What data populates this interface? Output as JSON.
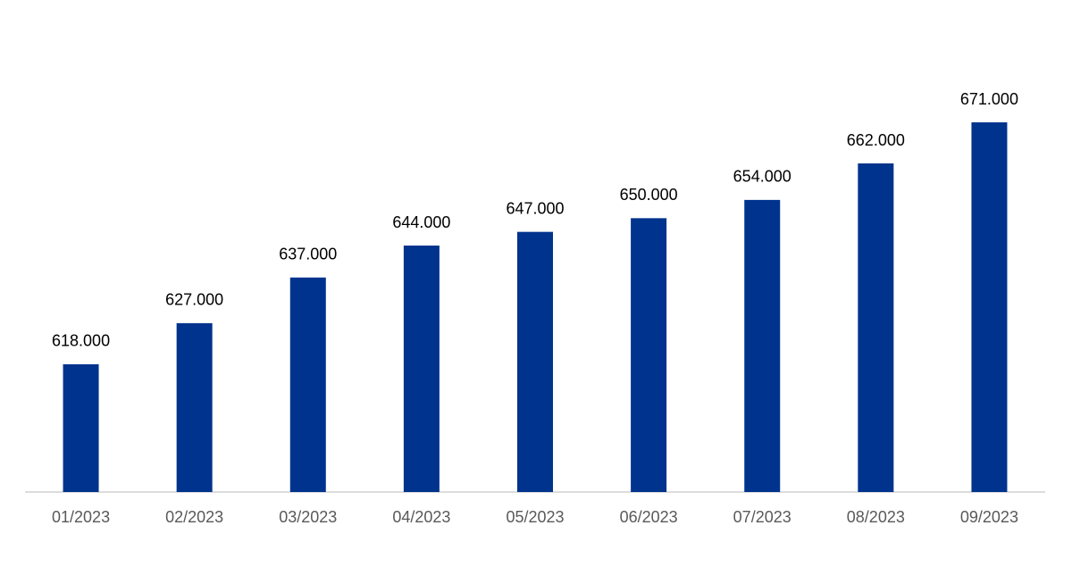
{
  "chart_data": {
    "type": "bar",
    "categories": [
      "01/2023",
      "02/2023",
      "03/2023",
      "04/2023",
      "05/2023",
      "06/2023",
      "07/2023",
      "08/2023",
      "09/2023"
    ],
    "values": [
      618000,
      627000,
      637000,
      644000,
      647000,
      650000,
      654000,
      662000,
      671000
    ],
    "value_labels": [
      "618.000",
      "627.000",
      "637.000",
      "644.000",
      "647.000",
      "650.000",
      "654.000",
      "662.000",
      "671.000"
    ],
    "color": "#00338d",
    "ylim": [
      590000,
      680000
    ]
  }
}
